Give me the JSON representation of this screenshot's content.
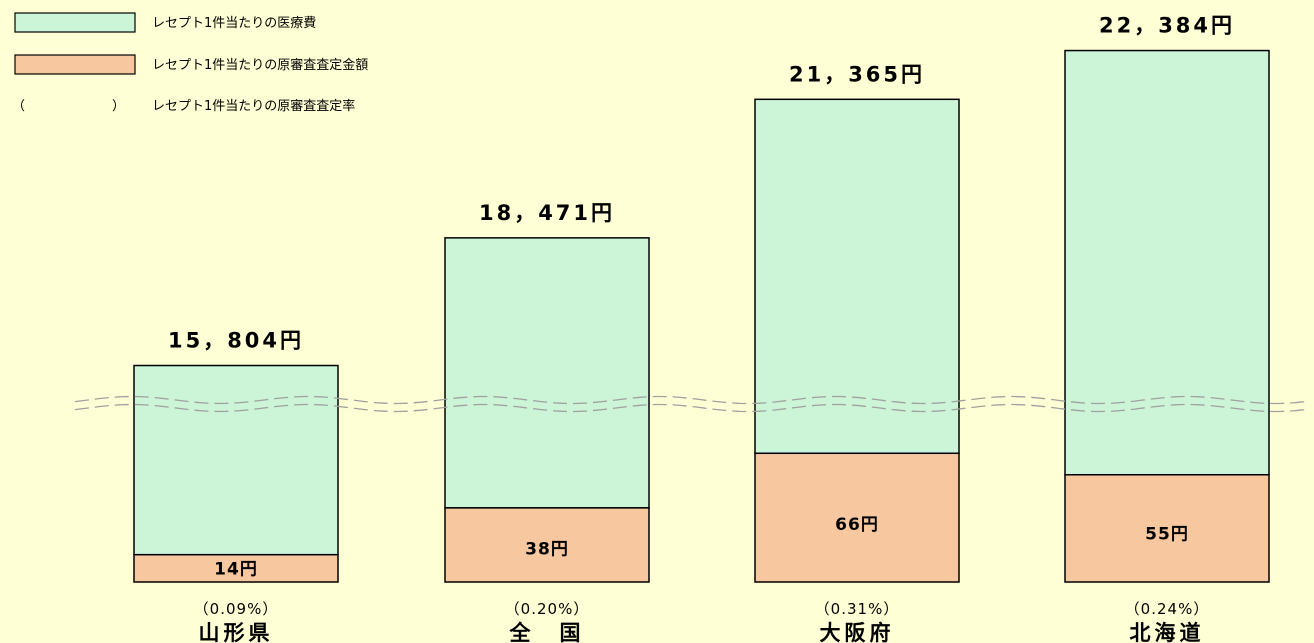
{
  "colors": {
    "background": "#ffffd6",
    "medical_cost": "#ccf5d8",
    "assessed_amount": "#f7c7a0",
    "outline": "#000000",
    "break_line": "#a0a0a0"
  },
  "legend": [
    {
      "marker": "swatch-green",
      "label": "レセプト1件当たりの医療費"
    },
    {
      "marker": "swatch-orange",
      "label": "レセプト1件当たりの原審査査定金額"
    },
    {
      "marker": "parentheses",
      "open": "（",
      "close": "）",
      "label": "レセプト1件当たりの原審査査定率"
    }
  ],
  "chart_data": {
    "type": "bar",
    "stacked": true,
    "broken_axis": true,
    "categories": [
      "山形県",
      "全　国",
      "大阪府",
      "北海道"
    ],
    "series": [
      {
        "name": "レセプト1件当たりの原審査査定金額",
        "color": "#f7c7a0",
        "values": [
          14,
          38,
          66,
          55
        ]
      },
      {
        "name": "レセプト1件当たりの医療費",
        "color": "#ccf5d8",
        "values": [
          15804,
          18471,
          21365,
          22384
        ]
      }
    ],
    "total_labels": [
      "15，804円",
      "18，471円",
      "21，365円",
      "22，384円"
    ],
    "amount_labels": [
      "14円",
      "38円",
      "66円",
      "55円"
    ],
    "rate_labels": [
      "（0.09%）",
      "（0.20%）",
      "（0.31%）",
      "（0.24%）"
    ],
    "rates_percent": [
      0.09,
      0.2,
      0.31,
      0.24
    ],
    "legend_position": "top-left",
    "grid": false
  }
}
